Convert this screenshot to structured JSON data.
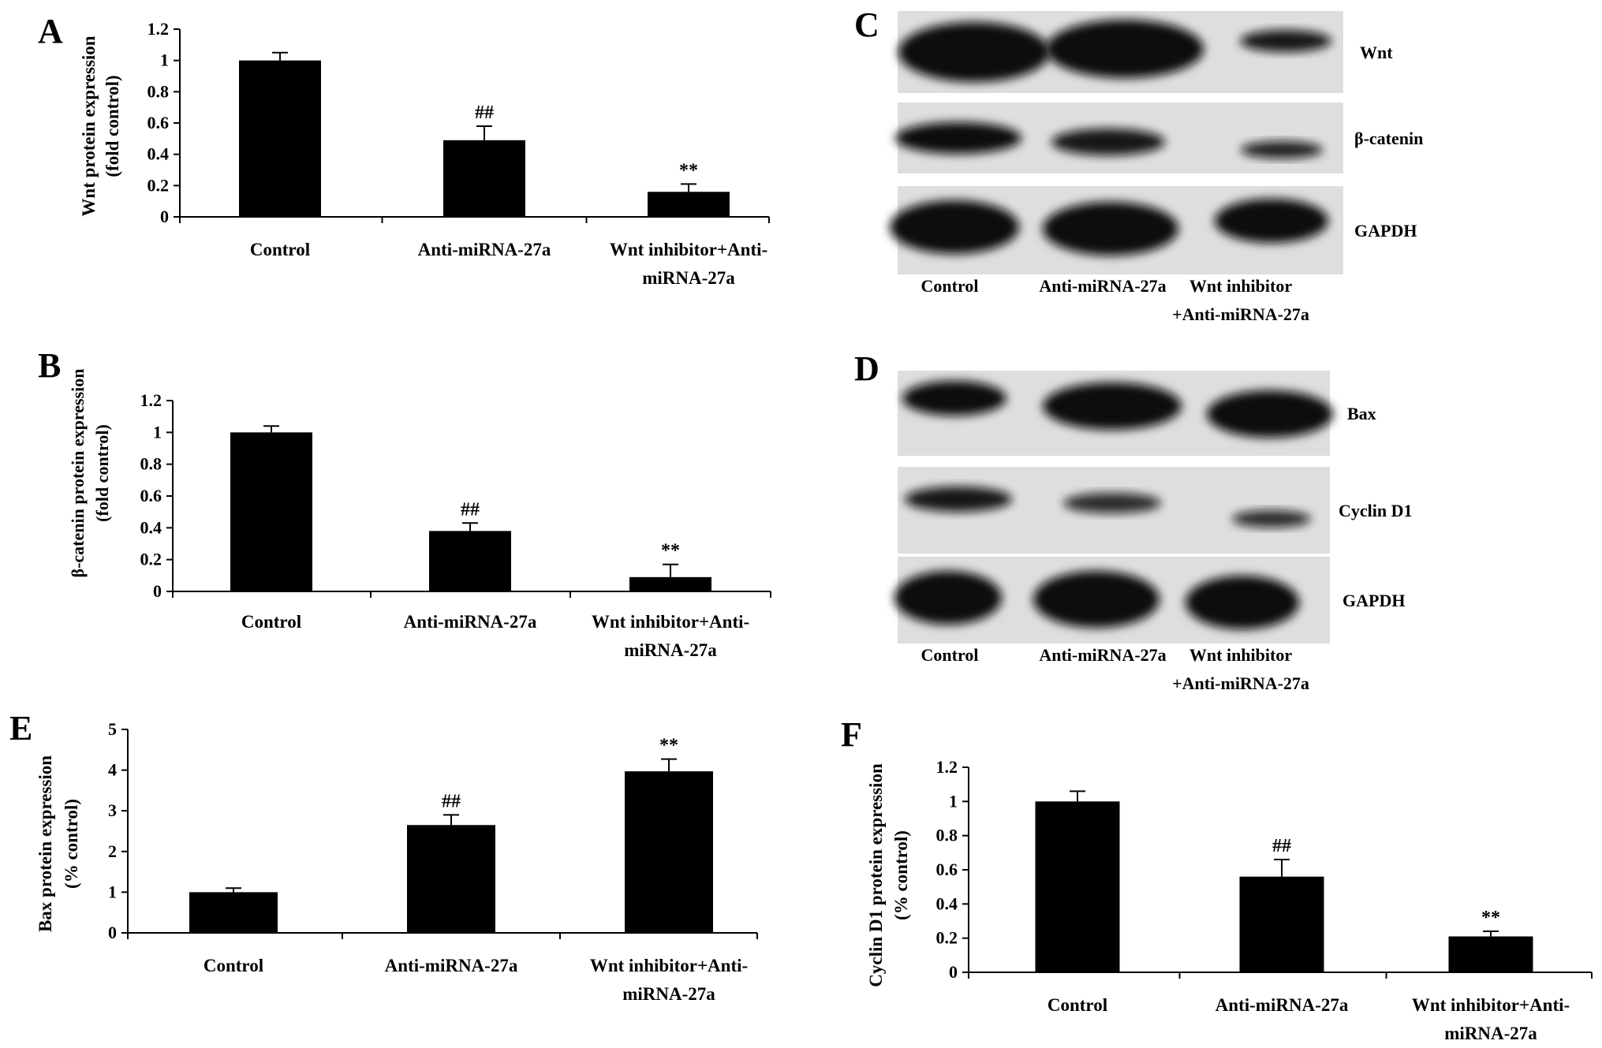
{
  "figure": {
    "colors": {
      "bar": "#000000",
      "axis": "#000000",
      "blot_bg": "#dedede",
      "band": "#0d0d0d"
    },
    "charts": [
      {
        "panel": "A",
        "ylabel_lines": [
          "Wnt protein expression",
          "(fold control)"
        ],
        "ytick_labels": [
          "0",
          "0.2",
          "0.4",
          "0.6",
          "0.8",
          "1",
          "1.2"
        ]
      },
      {
        "panel": "B",
        "ylabel_lines": [
          "β-catenin protein expression",
          "(fold control)"
        ],
        "ytick_labels": [
          "0",
          "0.2",
          "0.4",
          "0.6",
          "0.8",
          "1",
          "1.2"
        ]
      },
      {
        "panel": "E",
        "ylabel_lines": [
          "Bax protein expression",
          "(% control)"
        ],
        "ytick_labels": [
          "0",
          "1",
          "2",
          "3",
          "4",
          "5"
        ]
      },
      {
        "panel": "F",
        "ylabel_lines": [
          "Cyclin D1 protein expression",
          "(% control)"
        ],
        "ytick_labels": [
          "0",
          "0.2",
          "0.4",
          "0.6",
          "0.8",
          "1",
          "1.2"
        ]
      }
    ],
    "blots": [
      {
        "panel": "C",
        "bands": [
          "Wnt",
          "β-catenin",
          "GAPDH"
        ],
        "lanes": [
          "Control",
          "Anti-miRNA-27a",
          "Wnt inhibitor",
          "+Anti-miRNA-27a"
        ]
      },
      {
        "panel": "D",
        "bands": [
          "Bax",
          "Cyclin D1",
          "GAPDH"
        ],
        "lanes": [
          "Control",
          "Anti-miRNA-27a",
          "Wnt inhibitor",
          "+Anti-miRNA-27a"
        ]
      }
    ]
  },
  "chart_data": [
    {
      "type": "bar",
      "categories": [
        "Control",
        "Anti-miRNA-27a",
        "Wnt inhibitor+Anti-miRNA-27a"
      ],
      "values": [
        1.0,
        0.49,
        0.16
      ],
      "errors": [
        0.05,
        0.09,
        0.05
      ],
      "annotations": [
        "",
        "##",
        "**"
      ],
      "ylabel": "Wnt protein expression (fold control)",
      "ylim": [
        0,
        1.2
      ],
      "grid": false
    },
    {
      "type": "bar",
      "categories": [
        "Control",
        "Anti-miRNA-27a",
        "Wnt inhibitor+Anti-miRNA-27a"
      ],
      "values": [
        1.0,
        0.38,
        0.09
      ],
      "errors": [
        0.04,
        0.05,
        0.08
      ],
      "annotations": [
        "",
        "##",
        "**"
      ],
      "ylabel": "β-catenin protein expression (fold control)",
      "ylim": [
        0,
        1.2
      ],
      "grid": false
    },
    {
      "type": "bar",
      "categories": [
        "Control",
        "Anti-miRNA-27a",
        "Wnt inhibitor+Anti-miRNA-27a"
      ],
      "values": [
        1.0,
        2.65,
        3.97
      ],
      "errors": [
        0.1,
        0.25,
        0.3
      ],
      "annotations": [
        "",
        "##",
        "**"
      ],
      "ylabel": "Bax protein expression (% control)",
      "ylim": [
        0,
        5
      ],
      "grid": false
    },
    {
      "type": "bar",
      "categories": [
        "Control",
        "Anti-miRNA-27a",
        "Wnt inhibitor+Anti-miRNA-27a"
      ],
      "values": [
        1.0,
        0.56,
        0.21
      ],
      "errors": [
        0.06,
        0.1,
        0.03
      ],
      "annotations": [
        "",
        "##",
        "**"
      ],
      "ylabel": "Cyclin D1 protein expression (% control)",
      "ylim": [
        0,
        1.2
      ],
      "grid": false
    }
  ]
}
